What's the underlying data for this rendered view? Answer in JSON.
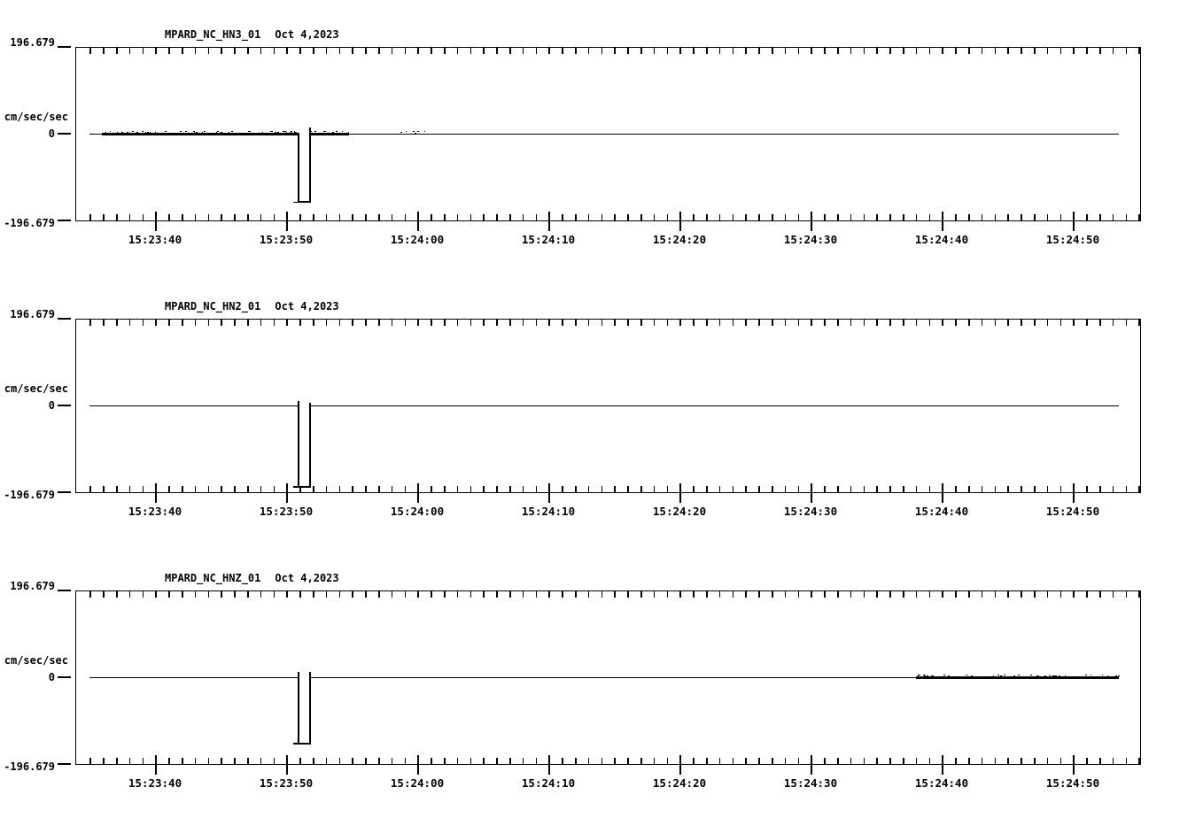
{
  "page": {
    "background": "#ffffff",
    "ink": "#000000"
  },
  "chart_data": [
    {
      "type": "line",
      "station": "MPARD_NC_HN3_01",
      "date": "Oct 4,2023",
      "title": "MPARD_NC_HN3_01  Oct 4,2023",
      "ylabel": "cm/sec/sec",
      "ylim": [
        -196.679,
        196.679
      ],
      "ytick_labels": [
        "196.679",
        "0",
        "-196.679"
      ],
      "xtick_labels": [
        "15:23:40",
        "15:23:50",
        "15:24:00",
        "15:24:10",
        "15:24:20",
        "15:24:30",
        "15:24:40",
        "15:24:50"
      ],
      "x_minor_tick_seconds": 1,
      "x_major_tick_seconds": 10,
      "x_axis_start": "15:23:34",
      "x_axis_end": "15:24:55",
      "trace": {
        "baseline_value": 0,
        "data_start": "15:23:35.0",
        "data_end": "15:24:53.5",
        "pulse": {
          "start": "15:23:50.9",
          "end": "15:23:51.8",
          "value": -155,
          "left_overshoot": 3,
          "right_overshoot": 16
        },
        "noise_regions": [
          {
            "start": "15:23:35.9",
            "end": "15:23:50.9",
            "intensity": "medium"
          },
          {
            "start": "15:23:51.8",
            "end": "15:23:54.8",
            "intensity": "medium"
          },
          {
            "start": "15:23:54.8",
            "end": "15:24:00.6",
            "intensity": "sparse"
          }
        ]
      }
    },
    {
      "type": "line",
      "station": "MPARD_NC_HN2_01",
      "date": "Oct 4,2023",
      "title": "MPARD_NC_HN2_01  Oct 4,2023",
      "ylabel": "cm/sec/sec",
      "ylim": [
        -196.679,
        196.679
      ],
      "ytick_labels": [
        "196.679",
        "0",
        "-196.679"
      ],
      "xtick_labels": [
        "15:23:40",
        "15:23:50",
        "15:24:00",
        "15:24:10",
        "15:24:20",
        "15:24:30",
        "15:24:40",
        "15:24:50"
      ],
      "x_minor_tick_seconds": 1,
      "x_major_tick_seconds": 10,
      "x_axis_start": "15:23:34",
      "x_axis_end": "15:24:55",
      "trace": {
        "baseline_value": 0,
        "data_start": "15:23:35.0",
        "data_end": "15:24:53.5",
        "pulse": {
          "start": "15:23:50.9",
          "end": "15:23:51.8",
          "value": -184,
          "left_overshoot": 12,
          "right_overshoot": 8
        },
        "noise_regions": []
      }
    },
    {
      "type": "line",
      "station": "MPARD_NC_HNZ_01",
      "date": "Oct 4,2023",
      "title": "MPARD_NC_HNZ_01  Oct 4,2023",
      "ylabel": "cm/sec/sec",
      "ylim": [
        -196.679,
        196.679
      ],
      "ytick_labels": [
        "196.679",
        "0",
        "-196.679"
      ],
      "xtick_labels": [
        "15:23:40",
        "15:23:50",
        "15:24:00",
        "15:24:10",
        "15:24:20",
        "15:24:30",
        "15:24:40",
        "15:24:50"
      ],
      "x_minor_tick_seconds": 1,
      "x_major_tick_seconds": 10,
      "x_axis_start": "15:23:34",
      "x_axis_end": "15:24:55",
      "trace": {
        "baseline_value": 0,
        "data_start": "15:23:35.0",
        "data_end": "15:24:53.5",
        "pulse": {
          "start": "15:23:50.9",
          "end": "15:23:51.8",
          "value": -150,
          "left_overshoot": 13,
          "right_overshoot": 14
        },
        "noise_regions": [
          {
            "start": "15:24:38.0",
            "end": "15:24:46.0",
            "intensity": "medium"
          },
          {
            "start": "15:24:46.0",
            "end": "15:24:53.5",
            "intensity": "strong"
          }
        ]
      }
    }
  ]
}
